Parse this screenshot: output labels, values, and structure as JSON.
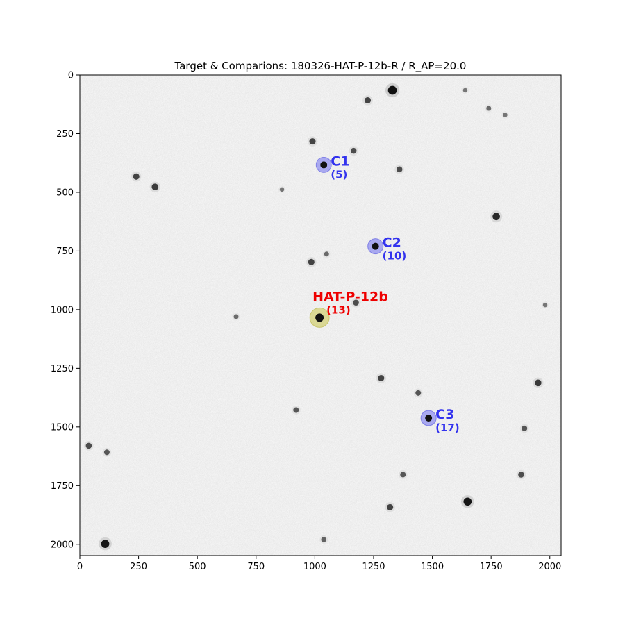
{
  "chart_data": {
    "type": "scatter",
    "title": "Target & Comparions: 180326-HAT-P-12b-R / R_AP=20.0",
    "xlabel": "",
    "ylabel": "",
    "xlim": [
      0,
      2048
    ],
    "ylim": [
      2048,
      0
    ],
    "y_inverted": true,
    "grid": false,
    "background": "grayscale star field (inverted)",
    "x_ticks": [
      0,
      250,
      500,
      750,
      1000,
      1250,
      1500,
      1750,
      2000
    ],
    "y_ticks": [
      0,
      250,
      500,
      750,
      1000,
      1250,
      1500,
      1750,
      2000
    ],
    "marked_sources": [
      {
        "name": "C1",
        "index_label": "(5)",
        "x": 1038,
        "y": 383,
        "role": "comparison",
        "color": "#3333ee"
      },
      {
        "name": "C2",
        "index_label": "(10)",
        "x": 1258,
        "y": 730,
        "role": "comparison",
        "color": "#3333ee"
      },
      {
        "name": "HAT-P-12b",
        "index_label": "(13)",
        "x": 1020,
        "y": 1034,
        "role": "target",
        "color": "#ee0000"
      },
      {
        "name": "C3",
        "index_label": "(17)",
        "x": 1484,
        "y": 1462,
        "role": "comparison",
        "color": "#3333ee"
      }
    ],
    "field_stars": [
      {
        "x": 1330,
        "y": 65,
        "m": 1.6
      },
      {
        "x": 1225,
        "y": 108,
        "m": 0.9
      },
      {
        "x": 990,
        "y": 283,
        "m": 0.9
      },
      {
        "x": 1165,
        "y": 323,
        "m": 0.8
      },
      {
        "x": 1360,
        "y": 402,
        "m": 0.8
      },
      {
        "x": 240,
        "y": 433,
        "m": 0.9
      },
      {
        "x": 320,
        "y": 477,
        "m": 1.0
      },
      {
        "x": 1772,
        "y": 603,
        "m": 1.2
      },
      {
        "x": 985,
        "y": 797,
        "m": 0.9
      },
      {
        "x": 1175,
        "y": 970,
        "m": 0.8
      },
      {
        "x": 1282,
        "y": 1292,
        "m": 0.9
      },
      {
        "x": 1950,
        "y": 1312,
        "m": 1.0
      },
      {
        "x": 1440,
        "y": 1355,
        "m": 0.7
      },
      {
        "x": 920,
        "y": 1428,
        "m": 0.7
      },
      {
        "x": 1892,
        "y": 1506,
        "m": 0.7
      },
      {
        "x": 38,
        "y": 1580,
        "m": 0.8
      },
      {
        "x": 115,
        "y": 1608,
        "m": 0.7
      },
      {
        "x": 1375,
        "y": 1703,
        "m": 0.7
      },
      {
        "x": 1878,
        "y": 1703,
        "m": 0.8
      },
      {
        "x": 1650,
        "y": 1818,
        "m": 1.4
      },
      {
        "x": 1320,
        "y": 1842,
        "m": 0.9
      },
      {
        "x": 108,
        "y": 1998,
        "m": 1.4
      },
      {
        "x": 1038,
        "y": 1980,
        "m": 0.6
      },
      {
        "x": 1740,
        "y": 142,
        "m": 0.5
      },
      {
        "x": 1640,
        "y": 65,
        "m": 0.4
      },
      {
        "x": 1810,
        "y": 170,
        "m": 0.4
      },
      {
        "x": 860,
        "y": 488,
        "m": 0.4
      },
      {
        "x": 1050,
        "y": 763,
        "m": 0.5
      },
      {
        "x": 665,
        "y": 1030,
        "m": 0.5
      },
      {
        "x": 1980,
        "y": 980,
        "m": 0.4
      }
    ]
  }
}
